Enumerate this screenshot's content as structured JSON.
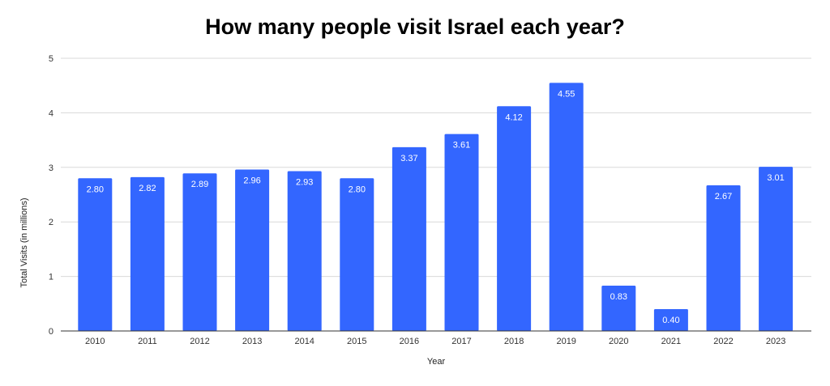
{
  "chart_data": {
    "type": "bar",
    "title": "How many people visit Israel each year?",
    "xlabel": "Year",
    "ylabel": "Total Visits (in millions)",
    "categories": [
      "2010",
      "2011",
      "2012",
      "2013",
      "2014",
      "2015",
      "2016",
      "2017",
      "2018",
      "2019",
      "2020",
      "2021",
      "2022",
      "2023"
    ],
    "values": [
      2.8,
      2.82,
      2.89,
      2.96,
      2.93,
      2.8,
      3.37,
      3.61,
      4.12,
      4.55,
      0.83,
      0.4,
      2.67,
      3.01
    ],
    "value_labels": [
      "2.80",
      "2.82",
      "2.89",
      "2.96",
      "2.93",
      "2.80",
      "3.37",
      "3.61",
      "4.12",
      "4.55",
      "0.83",
      "0.40",
      "2.67",
      "3.01"
    ],
    "ylim": [
      0,
      5
    ],
    "yticks": [
      0,
      1,
      2,
      3,
      4,
      5
    ],
    "grid": true,
    "legend": "none",
    "bar_color": "#3366ff"
  }
}
